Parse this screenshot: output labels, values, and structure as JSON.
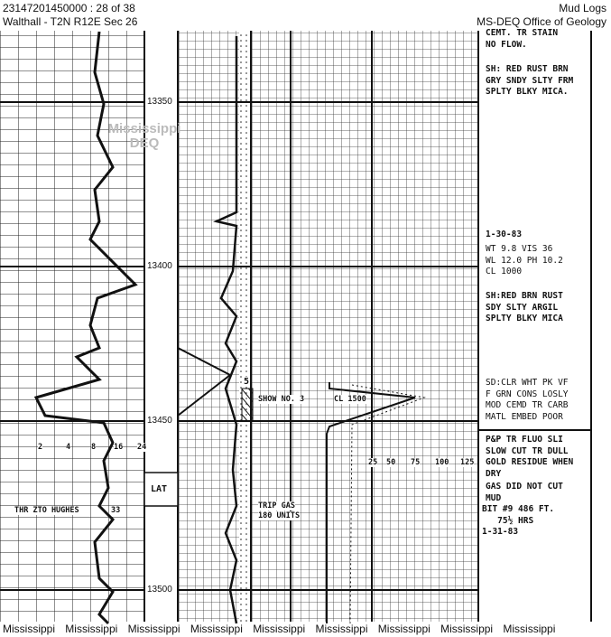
{
  "header": {
    "doc_id": "23147201450000 : 28 of 38",
    "location": "Walthall - T2N R12E Sec 26",
    "doc_type": "Mud Logs",
    "agency": "MS-DEQ Office of Geology"
  },
  "watermark": {
    "line1": "Mississippi",
    "line2": "DEQ"
  },
  "depths": [
    "13350",
    "13400",
    "13450",
    "13500"
  ],
  "left_track": {
    "scale_labels": [
      "2",
      "4",
      "8",
      "16",
      "24"
    ],
    "annotation": "THR ZTO HUGHES",
    "annotation_value": "33"
  },
  "lat_label": "LAT",
  "lithology": {
    "sample_number": "5"
  },
  "gas_track": {
    "show_label": "SHOW NO. 3",
    "chloride_label": "CL 1500",
    "scale_labels": [
      "25",
      "50",
      "75",
      "100",
      "125"
    ],
    "trip_gas_line1": "TRIP GAS",
    "trip_gas_line2": "180 UNITS"
  },
  "remarks": [
    "CEMT. TR STAIN\nNO FLOW.",
    "SH: RED RUST BRN\nGRY SNDY SLTY FRM\nSPLTY BLKY MICA.",
    "1-30-83",
    "WT 9.8 VIS 36\nWL 12.0 PH 10.2\nCL 1000",
    "SH:RED BRN RUST\nSDY SLTY ARGIL\nSPLTY BLKY MICA",
    "SD:CLR WHT PK VF\nF GRN CONS LOSLY\nMOD CEMD TR CARB\nMATL EMBED POOR",
    "P&P TR FLUO SLI\nSLOW CUT TR DULL\nGOLD RESIDUE WHEN\nDRY",
    "GAS DID NOT CUT\nMUD",
    "BIT #9 486 FT.\n   75½ HRS",
    "1-31-83"
  ],
  "footer": [
    "Mississippi",
    "Mississippi",
    "Mississippi",
    "Mississippi",
    "Mississippi",
    "Mississippi",
    "Mississippi",
    "Mississippi",
    "Mississippi"
  ],
  "colors": {
    "ink": "#111111",
    "paper": "#ffffff",
    "watermark": "#bbbbbb"
  }
}
